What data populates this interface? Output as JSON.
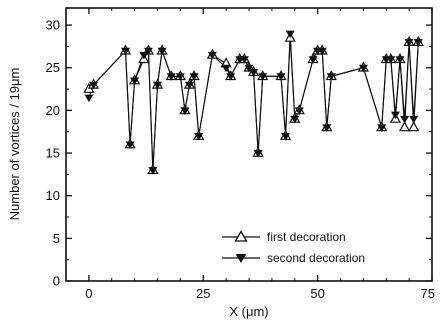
{
  "chart_data": {
    "type": "line",
    "title": "",
    "xlabel": "X (μm)",
    "ylabel": "Number of vortices / 19μm",
    "xlim": [
      -5,
      75
    ],
    "ylim": [
      0,
      32
    ],
    "xticks": [
      0,
      25,
      50,
      75
    ],
    "yticks": [
      0,
      5,
      10,
      15,
      20,
      25,
      30
    ],
    "legend_position": "bottom-right",
    "grid": false,
    "series": [
      {
        "name": "first decoration",
        "marker": "triangle-up-open",
        "points": [
          [
            0,
            22.5
          ],
          [
            1,
            23
          ],
          [
            8,
            27
          ],
          [
            9,
            16
          ],
          [
            10,
            23.5
          ],
          [
            12,
            26
          ],
          [
            13,
            27
          ],
          [
            14,
            13
          ],
          [
            15,
            23
          ],
          [
            16,
            27
          ],
          [
            18,
            24
          ],
          [
            20,
            24
          ],
          [
            21,
            20
          ],
          [
            22,
            23
          ],
          [
            23,
            24
          ],
          [
            24,
            17
          ],
          [
            27,
            26.5
          ],
          [
            30,
            25.5
          ],
          [
            31,
            24
          ],
          [
            33,
            26
          ],
          [
            34,
            26
          ],
          [
            35,
            25
          ],
          [
            36,
            24.5
          ],
          [
            37,
            15
          ],
          [
            38,
            24
          ],
          [
            42,
            24
          ],
          [
            43,
            17
          ],
          [
            44,
            28.5
          ],
          [
            45,
            19
          ],
          [
            46,
            20
          ],
          [
            49,
            26
          ],
          [
            50,
            27
          ],
          [
            51,
            27
          ],
          [
            52,
            18
          ],
          [
            53,
            24
          ],
          [
            60,
            25
          ],
          [
            64,
            18
          ],
          [
            65,
            26
          ],
          [
            66,
            26
          ],
          [
            67,
            19
          ],
          [
            68,
            26
          ],
          [
            69,
            18
          ],
          [
            70,
            28
          ],
          [
            71,
            18
          ],
          [
            72,
            28
          ]
        ]
      },
      {
        "name": "second decoration",
        "marker": "triangle-down-filled",
        "points": [
          [
            0,
            21.5
          ],
          [
            1,
            23
          ],
          [
            8,
            27
          ],
          [
            9,
            16
          ],
          [
            10,
            23.5
          ],
          [
            12,
            26.5
          ],
          [
            13,
            27
          ],
          [
            14,
            13
          ],
          [
            15,
            23
          ],
          [
            16,
            27
          ],
          [
            18,
            24
          ],
          [
            20,
            24
          ],
          [
            21,
            20
          ],
          [
            22,
            23
          ],
          [
            23,
            24
          ],
          [
            24,
            17
          ],
          [
            27,
            26.5
          ],
          [
            30,
            25
          ],
          [
            31,
            24
          ],
          [
            33,
            26
          ],
          [
            34,
            26
          ],
          [
            35,
            25
          ],
          [
            36,
            24.5
          ],
          [
            37,
            15
          ],
          [
            38,
            24
          ],
          [
            42,
            24
          ],
          [
            43,
            17
          ],
          [
            44,
            29
          ],
          [
            45,
            19
          ],
          [
            46,
            20
          ],
          [
            49,
            26
          ],
          [
            50,
            27
          ],
          [
            51,
            27
          ],
          [
            52,
            18
          ],
          [
            53,
            24
          ],
          [
            60,
            25
          ],
          [
            64,
            18
          ],
          [
            65,
            26
          ],
          [
            66,
            26
          ],
          [
            67,
            19.5
          ],
          [
            68,
            26
          ],
          [
            69,
            19
          ],
          [
            70,
            28
          ],
          [
            71,
            19
          ],
          [
            72,
            28
          ]
        ]
      }
    ]
  }
}
